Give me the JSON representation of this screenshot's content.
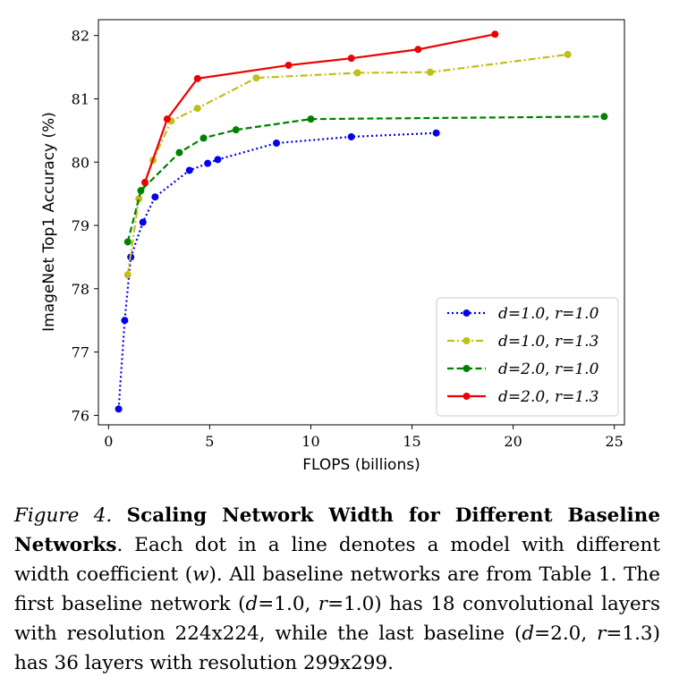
{
  "chart_data": {
    "type": "line",
    "xlabel": "FLOPS (billions)",
    "ylabel": "ImageNet Top1 Accuracy (%)",
    "xlim": [
      -0.5,
      25.5
    ],
    "ylim": [
      75.85,
      82.25
    ],
    "xticks": [
      0,
      5,
      10,
      15,
      20,
      25
    ],
    "yticks": [
      76,
      77,
      78,
      79,
      80,
      81,
      82
    ],
    "legend_position": "lower-right",
    "series": [
      {
        "name_d": "d=1.0",
        "name_r": "r=1.0",
        "color": "#0000ee",
        "dash": "dotted",
        "points": [
          [
            0.5,
            76.1
          ],
          [
            0.8,
            77.5
          ],
          [
            1.1,
            78.5
          ],
          [
            1.7,
            79.05
          ],
          [
            2.3,
            79.45
          ],
          [
            4.0,
            79.87
          ],
          [
            4.9,
            79.98
          ],
          [
            5.4,
            80.04
          ],
          [
            8.3,
            80.3
          ],
          [
            12.0,
            80.4
          ],
          [
            16.2,
            80.46
          ]
        ]
      },
      {
        "name_d": "d=1.0",
        "name_r": "r=1.3",
        "color": "#bfbf1a",
        "dash": "dashdot",
        "points": [
          [
            0.95,
            78.22
          ],
          [
            1.5,
            79.42
          ],
          [
            2.2,
            80.03
          ],
          [
            3.1,
            80.65
          ],
          [
            4.4,
            80.85
          ],
          [
            7.3,
            81.33
          ],
          [
            12.3,
            81.41
          ],
          [
            15.9,
            81.42
          ],
          [
            22.7,
            81.7
          ]
        ]
      },
      {
        "name_d": "d=2.0",
        "name_r": "r=1.0",
        "color": "#008000",
        "dash": "dashed",
        "points": [
          [
            0.95,
            78.74
          ],
          [
            1.6,
            79.55
          ],
          [
            3.5,
            80.15
          ],
          [
            4.7,
            80.38
          ],
          [
            6.3,
            80.51
          ],
          [
            10.0,
            80.68
          ],
          [
            24.5,
            80.72
          ]
        ]
      },
      {
        "name_d": "d=2.0",
        "name_r": "r=1.3",
        "color": "#ee0000",
        "dash": "solid",
        "points": [
          [
            1.8,
            79.68
          ],
          [
            2.9,
            80.68
          ],
          [
            4.4,
            81.32
          ],
          [
            8.9,
            81.53
          ],
          [
            12.0,
            81.64
          ],
          [
            15.3,
            81.78
          ],
          [
            19.1,
            82.02
          ]
        ]
      }
    ]
  },
  "caption": {
    "label": "Figure 4.",
    "title": "Scaling Network Width for Different Baseline Networks",
    "body_1": ". Each dot in a line denotes a model with different width coefficient (",
    "w_symbol": "w",
    "body_2": "). All baseline networks are from Table 1. The first baseline network (",
    "d1": "d",
    "v1": "=1.0, ",
    "r1": "r",
    "v2": "=1.0) has 18 convolutional layers with resolution 224x224, while the last baseline (",
    "d2": "d",
    "v3": "=2.0, ",
    "r2": "r",
    "v4": "=1.3) has 36 layers with resolution 299x299."
  }
}
